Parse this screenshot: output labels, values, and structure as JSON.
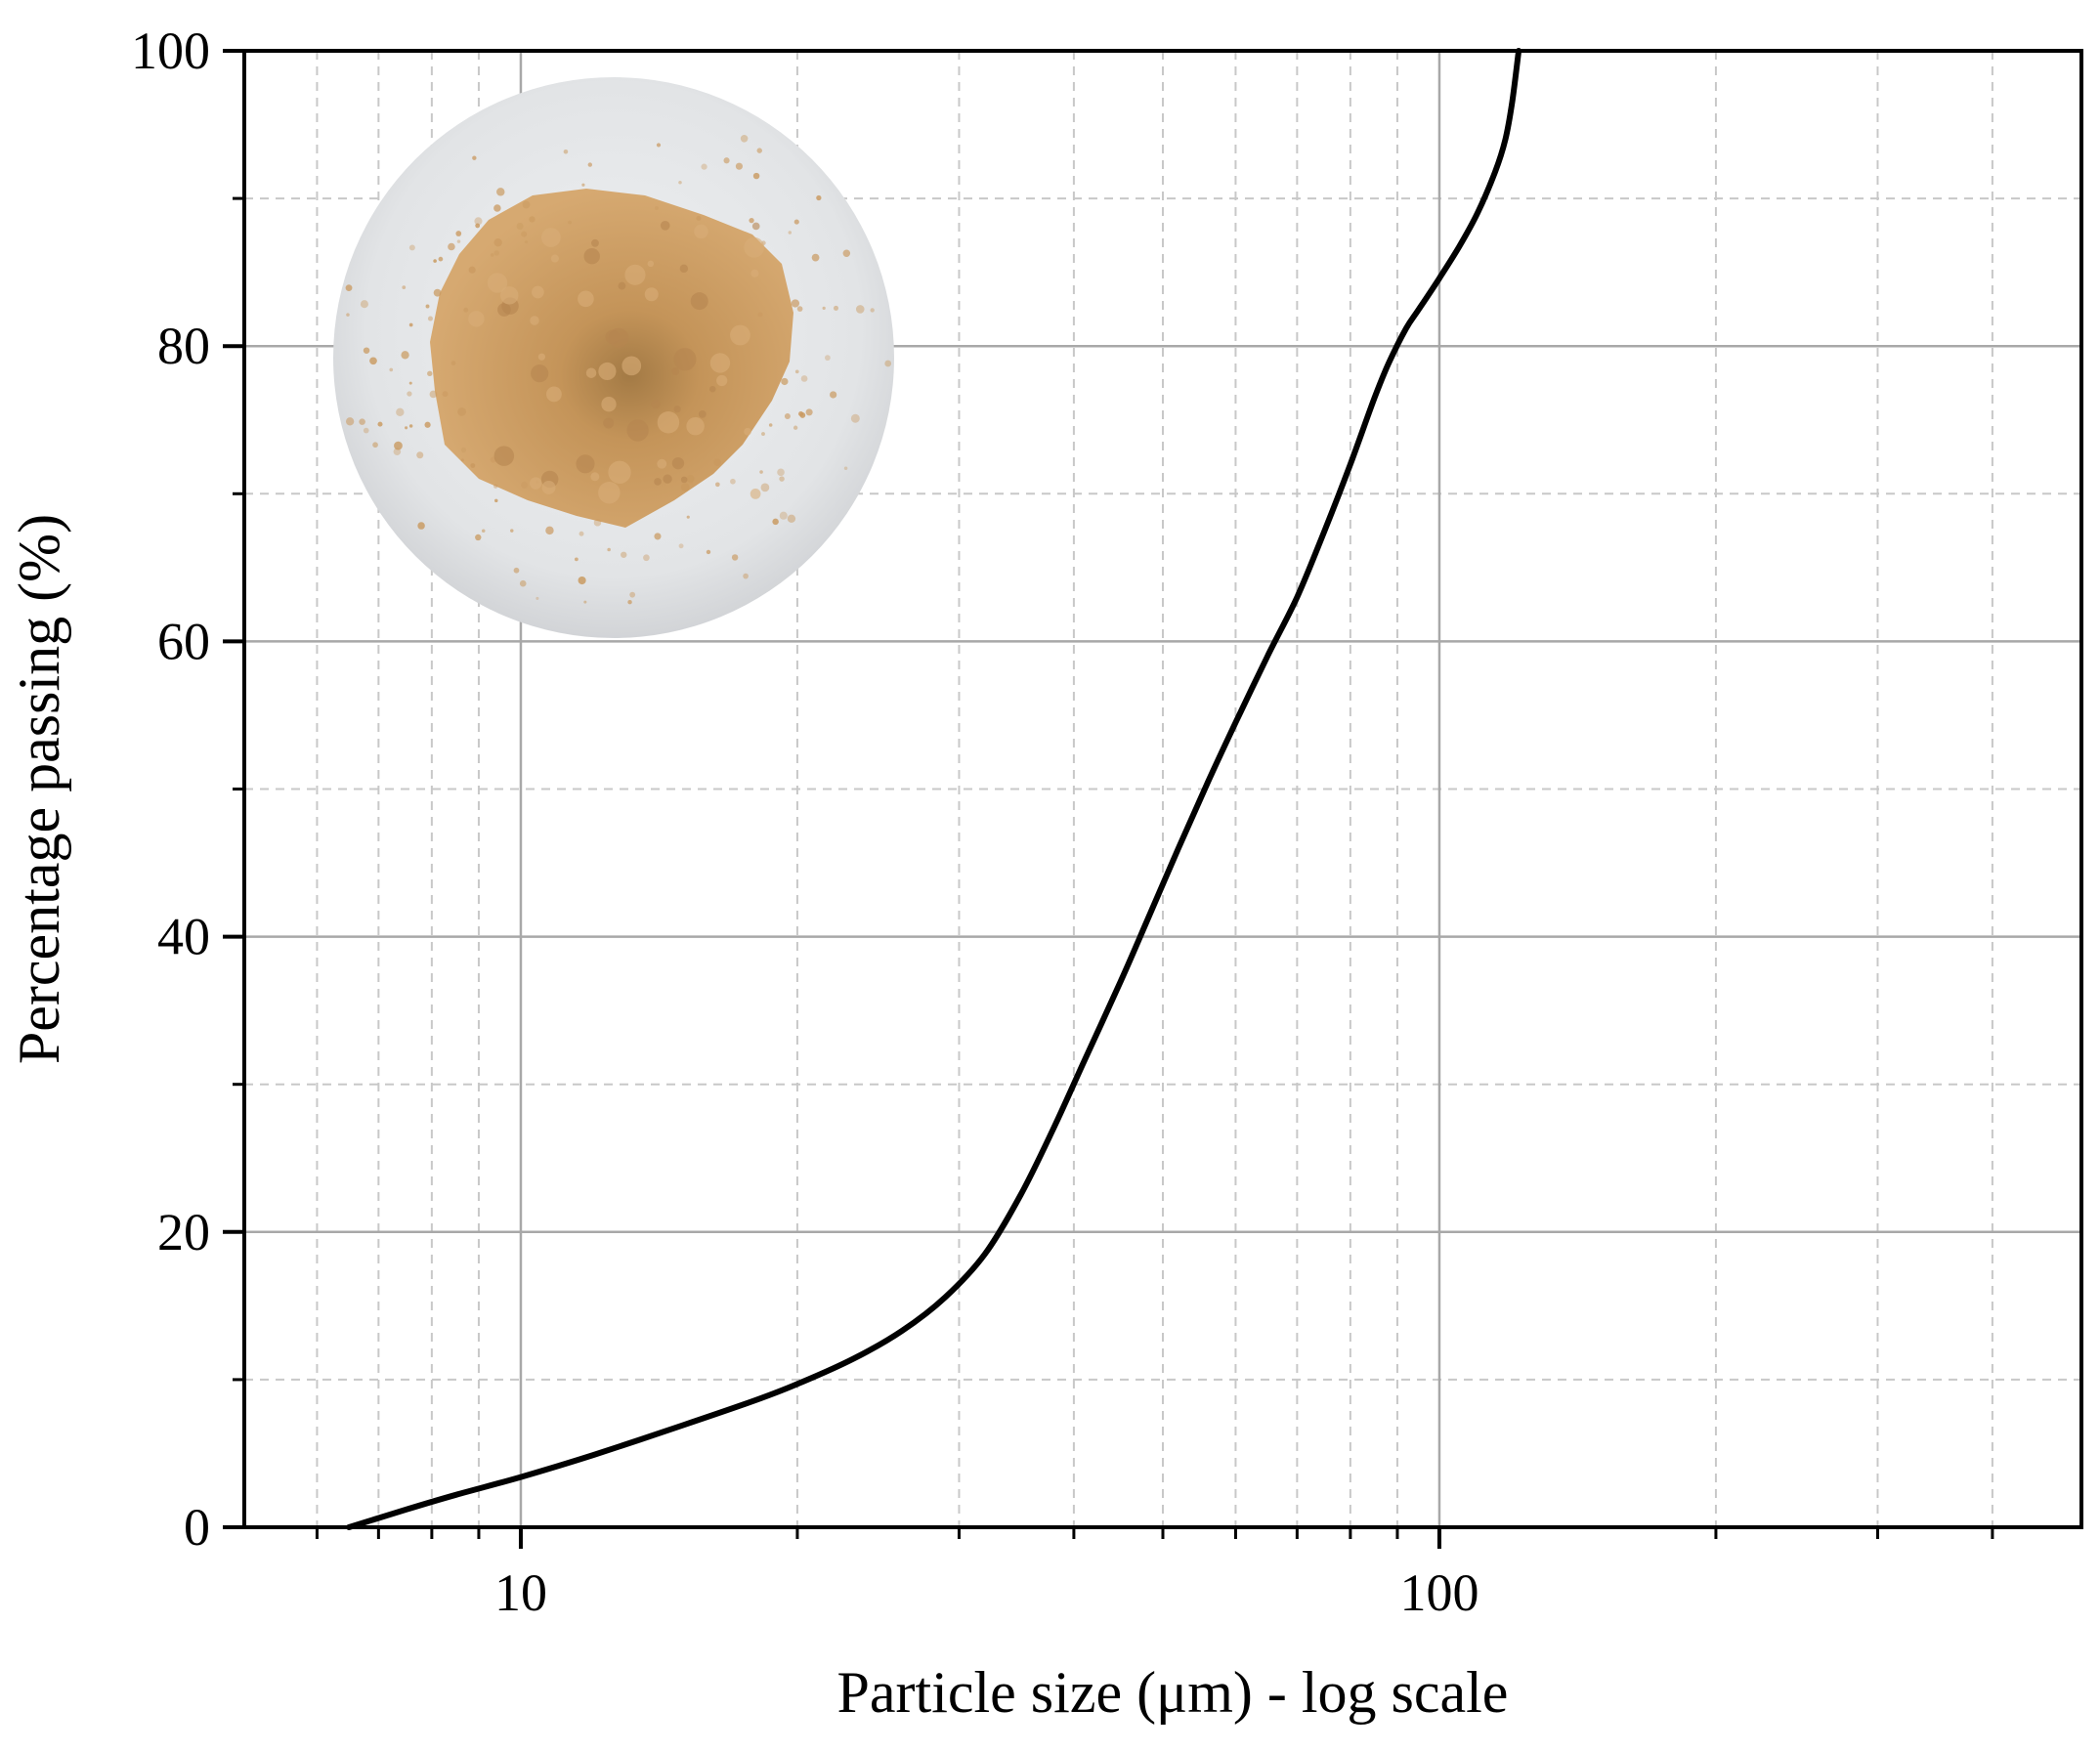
{
  "chart_data": {
    "type": "line",
    "title": "",
    "xlabel": "Particle size (μm) - log scale",
    "ylabel": "Percentage passing (%)",
    "x_scale": "log",
    "xlim": [
      5,
      500
    ],
    "ylim": [
      0,
      100
    ],
    "x_ticks": [
      10,
      100
    ],
    "x_tick_labels": [
      "10",
      "100"
    ],
    "y_ticks": [
      0,
      20,
      40,
      60,
      80,
      100
    ],
    "y_tick_labels": [
      "0",
      "20",
      "40",
      "60",
      "80",
      "100"
    ],
    "grid": true,
    "legend": "none",
    "inset": "circular photo of tan powder sample, upper left",
    "series": [
      {
        "color": "#000000",
        "x": [
          6.5,
          7.5,
          8.5,
          10,
          12,
          15,
          18,
          20,
          23,
          26,
          29,
          32,
          35,
          38,
          41,
          45,
          48,
          52,
          56,
          60,
          65,
          70,
          75,
          80,
          85,
          88,
          92,
          95,
          100,
          105,
          110,
          115,
          118,
          120,
          122
        ],
        "y": [
          0,
          1.2,
          2.2,
          3.4,
          4.9,
          6.9,
          8.6,
          9.7,
          11.4,
          13.3,
          15.6,
          18.5,
          22.5,
          27.0,
          31.5,
          37.0,
          41.0,
          46.0,
          50.5,
          54.5,
          59.0,
          63.0,
          67.5,
          72.0,
          76.5,
          78.8,
          81.2,
          82.5,
          84.6,
          86.7,
          89.0,
          91.8,
          94.0,
          96.5,
          100
        ]
      }
    ]
  },
  "colors": {
    "curve": "#000000",
    "major_grid": "#a8a8a8",
    "minor_grid": "#c8c8c8",
    "powder": "#c9995f",
    "photo_background": "#e6e8ea"
  }
}
